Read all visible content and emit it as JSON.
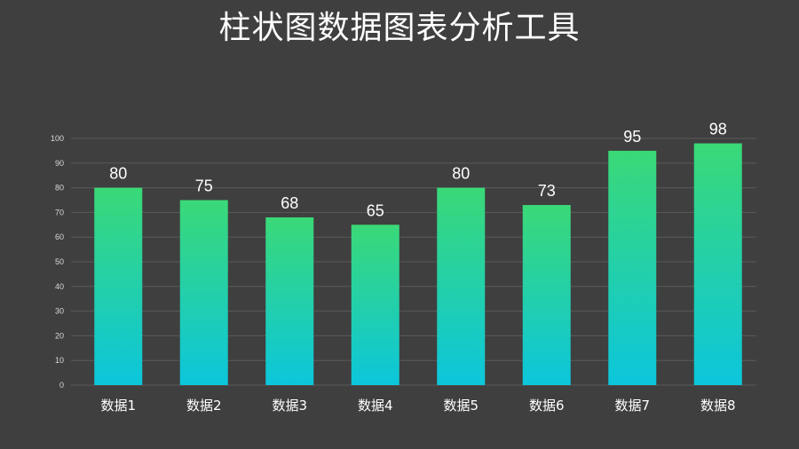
{
  "title": "柱状图数据图表分析工具",
  "colors": {
    "background": "#3f3f3f",
    "bar_top": "#3ad977",
    "bar_bottom": "#0cc6dc",
    "grid": "#5a5a5a",
    "text": "#ffffff"
  },
  "chart_data": {
    "type": "bar",
    "title": "",
    "xlabel": "",
    "ylabel": "",
    "categories": [
      "数据1",
      "数据2",
      "数据3",
      "数据4",
      "数据5",
      "数据6",
      "数据7",
      "数据8"
    ],
    "values": [
      80,
      75,
      68,
      65,
      80,
      73,
      95,
      98
    ],
    "ylim": [
      0,
      100
    ],
    "yticks": [
      0,
      10,
      20,
      30,
      40,
      50,
      60,
      70,
      80,
      90,
      100
    ],
    "grid": true,
    "data_labels": true
  }
}
